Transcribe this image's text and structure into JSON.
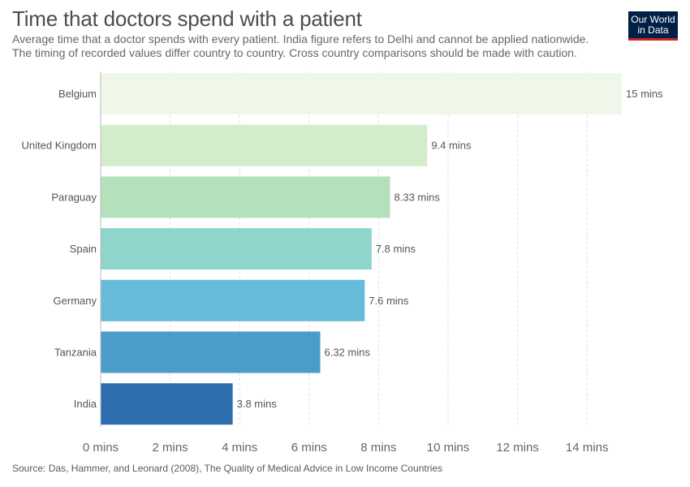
{
  "header": {
    "title": "Time that doctors spend with a patient",
    "subtitle_line1": "Average time that a doctor spends with every patient. India figure refers to Delhi and cannot be applied nationwide.",
    "subtitle_line2": "The timing of recorded values differ country to country. Cross country comparisons should be made with caution.",
    "logo_line1": "Our World",
    "logo_line2": "in Data"
  },
  "footer": {
    "source": "Source: Das, Hammer, and Leonard (2008), The Quality of Medical Advice in Low Income Countries"
  },
  "colors": {
    "logo_bg": "#002147",
    "logo_accent": "#ce261e",
    "bars": [
      "#eff8e8",
      "#d3edcc",
      "#b4e1bb",
      "#8fd5cc",
      "#66bbd9",
      "#4b9dc9",
      "#2c6eae"
    ]
  },
  "chart_data": {
    "type": "bar",
    "orientation": "horizontal",
    "categories": [
      "Belgium",
      "United Kingdom",
      "Paraguay",
      "Spain",
      "Germany",
      "Tanzania",
      "India"
    ],
    "values": [
      15,
      9.4,
      8.33,
      7.8,
      7.6,
      6.32,
      3.8
    ],
    "value_labels": [
      "15 mins",
      "9.4 mins",
      "8.33 mins",
      "7.8 mins",
      "7.6 mins",
      "6.32 mins",
      "3.8 mins"
    ],
    "xlim": [
      0,
      15
    ],
    "x_ticks": [
      0,
      2,
      4,
      6,
      8,
      10,
      12,
      14
    ],
    "x_tick_labels": [
      "0 mins",
      "2 mins",
      "4 mins",
      "6 mins",
      "8 mins",
      "10 mins",
      "12 mins",
      "14 mins"
    ],
    "grid": true
  }
}
